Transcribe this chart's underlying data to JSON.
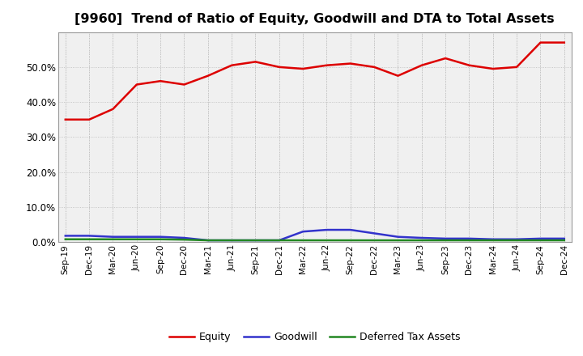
{
  "title": "[9960]  Trend of Ratio of Equity, Goodwill and DTA to Total Assets",
  "x_labels": [
    "Sep-19",
    "Dec-19",
    "Mar-20",
    "Jun-20",
    "Sep-20",
    "Dec-20",
    "Mar-21",
    "Jun-21",
    "Sep-21",
    "Dec-21",
    "Mar-22",
    "Jun-22",
    "Sep-22",
    "Dec-22",
    "Mar-23",
    "Jun-23",
    "Sep-23",
    "Dec-23",
    "Mar-24",
    "Jun-24",
    "Sep-24",
    "Dec-24"
  ],
  "equity": [
    35.0,
    35.0,
    38.0,
    45.0,
    46.0,
    45.0,
    47.5,
    50.5,
    51.5,
    50.0,
    49.5,
    50.5,
    51.0,
    50.0,
    47.5,
    50.5,
    52.5,
    50.5,
    49.5,
    50.0,
    57.0,
    57.0
  ],
  "goodwill": [
    1.8,
    1.8,
    1.5,
    1.5,
    1.5,
    1.2,
    0.5,
    0.5,
    0.5,
    0.5,
    3.0,
    3.5,
    3.5,
    2.5,
    1.5,
    1.2,
    1.0,
    1.0,
    0.8,
    0.8,
    1.0,
    1.0
  ],
  "dta": [
    0.8,
    0.8,
    0.8,
    0.8,
    0.8,
    0.7,
    0.5,
    0.5,
    0.5,
    0.5,
    0.5,
    0.5,
    0.5,
    0.5,
    0.5,
    0.5,
    0.5,
    0.5,
    0.5,
    0.5,
    0.5,
    0.5
  ],
  "equity_color": "#dd0000",
  "goodwill_color": "#3333cc",
  "dta_color": "#228822",
  "background_color": "#ffffff",
  "plot_bg_color": "#f0f0f0",
  "grid_color": "#bbbbbb",
  "ylim": [
    0,
    60
  ],
  "yticks": [
    0,
    10,
    20,
    30,
    40,
    50
  ],
  "legend_labels": [
    "Equity",
    "Goodwill",
    "Deferred Tax Assets"
  ],
  "title_fontsize": 11.5
}
